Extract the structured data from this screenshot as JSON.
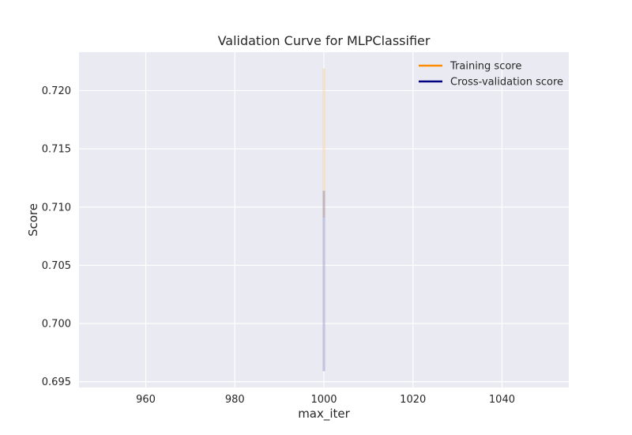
{
  "chart_data": {
    "type": "line",
    "title": "Validation Curve for MLPClassifier",
    "xlabel": "max_iter",
    "ylabel": "Score",
    "xlim": [
      945,
      1055
    ],
    "ylim": [
      0.6945,
      0.7233
    ],
    "x_ticks": [
      960,
      980,
      1000,
      1020,
      1040
    ],
    "x_tick_labels": [
      "960",
      "980",
      "1000",
      "1020",
      "1040"
    ],
    "y_ticks": [
      0.695,
      0.7,
      0.705,
      0.71,
      0.715,
      0.72
    ],
    "y_tick_labels": [
      "0.695",
      "0.700",
      "0.705",
      "0.710",
      "0.715",
      "0.720"
    ],
    "grid": true,
    "legend_position": "top-right",
    "series": [
      {
        "name": "Training score",
        "color": "#ff8c00",
        "x": [
          1000
        ],
        "y": [
          0.7155
        ],
        "band_lower": [
          0.7091
        ],
        "band_upper": [
          0.7219
        ]
      },
      {
        "name": "Cross-validation score",
        "color": "#000080",
        "x": [
          1000
        ],
        "y": [
          0.7036
        ],
        "band_lower": [
          0.6959
        ],
        "band_upper": [
          0.7114
        ]
      }
    ]
  }
}
